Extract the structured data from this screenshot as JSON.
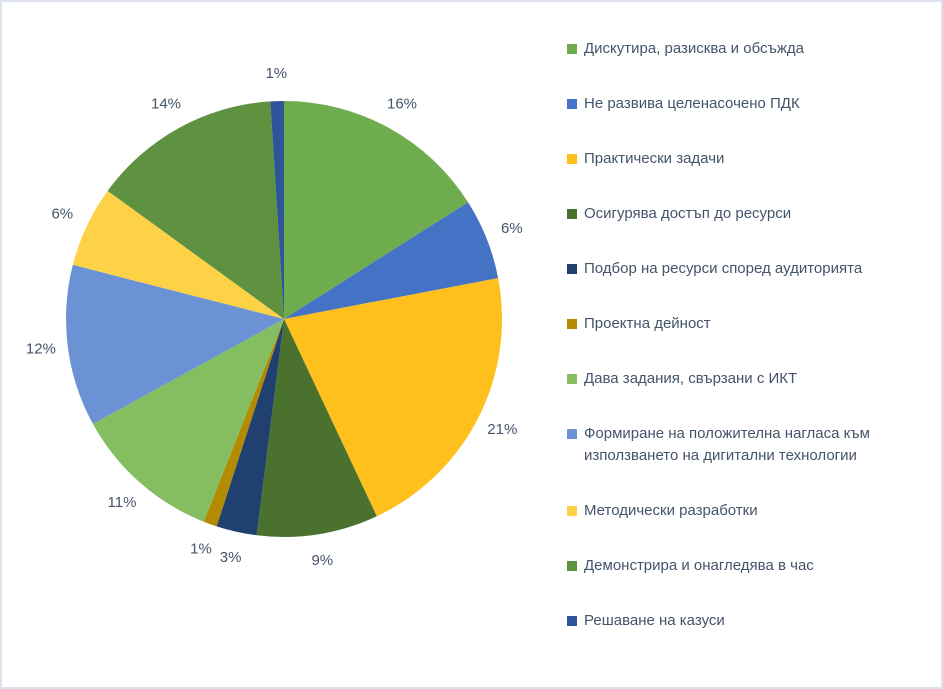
{
  "chart_data": {
    "type": "pie",
    "title": "",
    "legend_position": "right",
    "data_labels": "percent_outside",
    "label_color": "#44546A",
    "start_angle_deg": 0,
    "direction": "clockwise",
    "slices": [
      {
        "label": "Дискутира, разисква и обсъжда",
        "value": 16,
        "pct_label": "16%",
        "color": "#6FAC4D"
      },
      {
        "label": "Не развива целенасочено ПДК",
        "value": 6,
        "pct_label": "6%",
        "color": "#4472C4"
      },
      {
        "label": "Практически задачи",
        "value": 21,
        "pct_label": "21%",
        "color": "#FFC01E"
      },
      {
        "label": "Осигурява достъп до ресурси",
        "value": 9,
        "pct_label": "9%",
        "color": "#4A712E"
      },
      {
        "label": "Подбор на ресурси според аудиторията",
        "value": 3,
        "pct_label": "3%",
        "color": "#20416F"
      },
      {
        "label": "Проектна дейност",
        "value": 1,
        "pct_label": "1%",
        "color": "#B38B00"
      },
      {
        "label": "Дава задания, свързани с ИКТ",
        "value": 11,
        "pct_label": "11%",
        "color": "#84BE61"
      },
      {
        "label": "Формиране на положителна нагласа към използването на дигитални технологии",
        "value": 12,
        "pct_label": "12%",
        "color": "#6B92D4"
      },
      {
        "label": "Методически разработки",
        "value": 6,
        "pct_label": "6%",
        "color": "#FDD247"
      },
      {
        "label": "Демонстрира и онагледява в час",
        "value": 14,
        "pct_label": "14%",
        "color": "#5E9140"
      },
      {
        "label": "Решаване на казуси",
        "value": 1,
        "pct_label": "1%",
        "color": "#2E5597"
      }
    ]
  }
}
